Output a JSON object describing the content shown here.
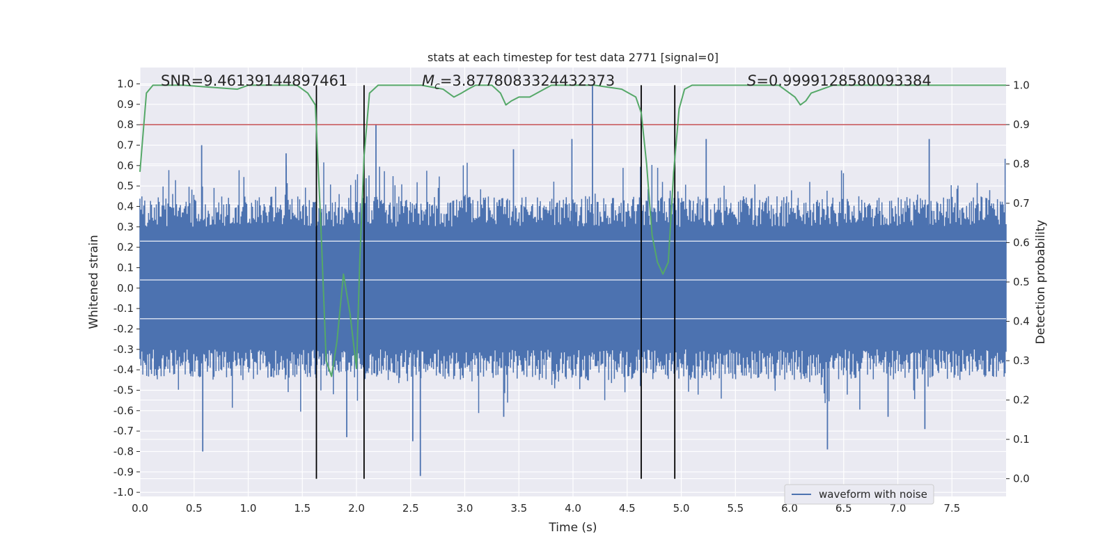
{
  "chart_data": {
    "type": "line",
    "title": "stats at each timestep for test data 2771 [signal=0]",
    "xlabel": "Time (s)",
    "ylabel": "Whitened strain",
    "y2label": "Detection probability",
    "xlim": [
      0.0,
      8.0
    ],
    "ylim": [
      -1.02,
      1.08
    ],
    "y2lim": [
      -0.045,
      1.045
    ],
    "xticks": [
      "0.0",
      "0.5",
      "1.0",
      "1.5",
      "2.0",
      "2.5",
      "3.0",
      "3.5",
      "4.0",
      "4.5",
      "5.0",
      "5.5",
      "6.0",
      "6.5",
      "7.0",
      "7.5"
    ],
    "yticks": [
      "1.0",
      "0.9",
      "0.8",
      "0.7",
      "0.6",
      "0.5",
      "0.4",
      "0.3",
      "0.2",
      "0.1",
      "0.0",
      "-0.1",
      "-0.2",
      "-0.3",
      "-0.4",
      "-0.5",
      "-0.6",
      "-0.7",
      "-0.8",
      "-0.9",
      "-1.0"
    ],
    "y2ticks": [
      "1.0",
      "0.9",
      "0.8",
      "0.7",
      "0.6",
      "0.5",
      "0.4",
      "0.3",
      "0.2",
      "0.1",
      "0.0"
    ],
    "grid": true,
    "legend_position": "lower-right",
    "annotations": {
      "snr": "SNR=9.46139144897461",
      "mc_symbol": "M",
      "mc_sub": "c",
      "mc_value": "=3.8778083324432373",
      "s_symbol": "S",
      "s_value": "=0.9999128580093384"
    },
    "series": [
      {
        "name": "waveform with noise",
        "axis": "left",
        "color": "#4c72b0",
        "kind": "noise-envelope",
        "core_range": [
          -0.3,
          0.3
        ],
        "typical_peak": 0.45,
        "spikes_positive": [
          {
            "x": 0.57,
            "y": 0.7
          },
          {
            "x": 1.35,
            "y": 0.66
          },
          {
            "x": 2.18,
            "y": 0.8
          },
          {
            "x": 3.45,
            "y": 0.68
          },
          {
            "x": 3.99,
            "y": 0.73
          },
          {
            "x": 4.18,
            "y": 0.99
          },
          {
            "x": 5.23,
            "y": 0.73
          },
          {
            "x": 7.29,
            "y": 0.73
          }
        ],
        "spikes_negative": [
          {
            "x": 0.58,
            "y": -0.8
          },
          {
            "x": 1.91,
            "y": -0.73
          },
          {
            "x": 2.59,
            "y": -0.92
          },
          {
            "x": 2.52,
            "y": -0.75
          },
          {
            "x": 6.35,
            "y": -0.79
          },
          {
            "x": 7.25,
            "y": -0.69
          },
          {
            "x": 6.91,
            "y": -0.63
          },
          {
            "x": 3.36,
            "y": -0.63
          }
        ]
      },
      {
        "name": "",
        "axis": "right",
        "color": "#55a868",
        "x": [
          0.0,
          0.06,
          0.12,
          0.4,
          0.9,
          1.0,
          1.2,
          1.45,
          1.55,
          1.62,
          1.67,
          1.72,
          1.77,
          1.82,
          1.88,
          1.94,
          2.0,
          2.03,
          2.07,
          2.12,
          2.2,
          2.3,
          2.6,
          2.8,
          2.9,
          2.97,
          3.03,
          3.1,
          3.25,
          3.33,
          3.38,
          3.43,
          3.5,
          3.6,
          3.8,
          4.2,
          4.45,
          4.58,
          4.63,
          4.68,
          4.73,
          4.78,
          4.83,
          4.88,
          4.93,
          4.98,
          5.03,
          5.1,
          5.5,
          5.9,
          6.05,
          6.1,
          6.15,
          6.2,
          6.3,
          6.4,
          6.6,
          7.4,
          7.6,
          7.7,
          8.0
        ],
        "y": [
          0.78,
          0.98,
          1.0,
          1.0,
          0.99,
          1.0,
          1.0,
          1.0,
          0.98,
          0.95,
          0.65,
          0.3,
          0.26,
          0.35,
          0.52,
          0.42,
          0.28,
          0.55,
          0.82,
          0.98,
          1.0,
          1.0,
          1.0,
          0.99,
          0.97,
          0.98,
          0.99,
          1.0,
          1.0,
          0.98,
          0.95,
          0.96,
          0.97,
          0.97,
          1.0,
          1.0,
          0.99,
          0.97,
          0.93,
          0.8,
          0.62,
          0.55,
          0.52,
          0.55,
          0.78,
          0.94,
          0.99,
          1.0,
          1.0,
          1.0,
          0.97,
          0.95,
          0.96,
          0.98,
          0.99,
          1.0,
          1.0,
          1.0,
          1.0,
          1.0,
          1.0
        ]
      }
    ],
    "threshold": {
      "axis": "right",
      "y": 0.9,
      "color": "#c44e52"
    },
    "vlines": [
      {
        "x": 1.63,
        "y2_from": 0.0,
        "y2_to": 1.0
      },
      {
        "x": 2.07,
        "y2_from": 0.0,
        "y2_to": 1.0
      },
      {
        "x": 4.63,
        "y2_from": 0.0,
        "y2_to": 1.0
      },
      {
        "x": 4.94,
        "y2_from": 0.0,
        "y2_to": 1.0
      }
    ],
    "legend": [
      {
        "label": "waveform with noise",
        "color": "#4c72b0"
      }
    ]
  }
}
